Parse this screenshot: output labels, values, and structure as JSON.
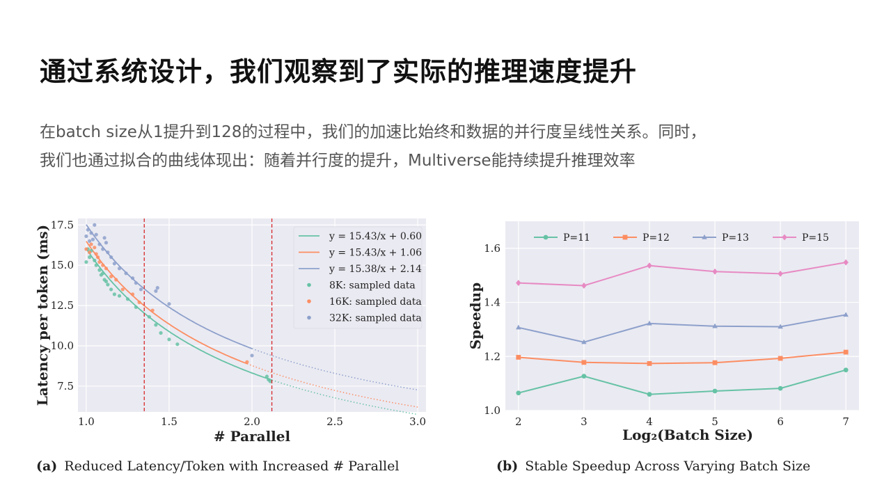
{
  "title": "通过系统设计，我们观察到了实际的推理速度提升",
  "subtitle": {
    "line1": "在batch size从1提升到128的过程中，我们的加速比始终和数据的并行度呈线性关系。同时，",
    "line2": "我们也通过拟合的曲线体现出：随着并行度的提升，Multiverse能持续提升推理效率"
  },
  "captions": {
    "a_tag": "(a)",
    "a_text": "Reduced Latency/Token with Increased # Parallel",
    "b_tag": "(b)",
    "b_text": "Stable Speedup Across Varying Batch Size"
  },
  "colors": {
    "green": "#66c2a5",
    "orange": "#fc8d62",
    "blue": "#8da0cb",
    "pink": "#e78ac3",
    "plot_bg": "#eaeaf2",
    "vline": "#d62728"
  },
  "chart_data": [
    {
      "type": "scatter",
      "xlabel": "# Parallel",
      "ylabel": "Latency per token (ms)",
      "xlim": [
        0.95,
        3.05
      ],
      "ylim": [
        5.9,
        17.9
      ],
      "xticks": [
        "1.0",
        "1.5",
        "2.0",
        "2.5",
        "3.0"
      ],
      "yticks": [
        "7.5",
        "10.0",
        "12.5",
        "15.0",
        "17.5"
      ],
      "grid": true,
      "legend_position": "top-right",
      "vlines": [
        1.35,
        2.12
      ],
      "fits": [
        {
          "name": "y = 15.43/x + 0.60",
          "a": 15.43,
          "b": 0.6,
          "color": "green",
          "solid_to": 2.12
        },
        {
          "name": "y = 15.43/x + 1.06",
          "a": 15.43,
          "b": 1.06,
          "color": "orange",
          "solid_to": 1.97
        },
        {
          "name": "y = 15.38/x + 2.14",
          "a": 15.38,
          "b": 2.14,
          "color": "blue",
          "solid_to": 2.0
        }
      ],
      "series": [
        {
          "name": "8K:  sampled data",
          "color": "green",
          "x": [
            1.0,
            1.01,
            1.02,
            1.03,
            1.05,
            1.06,
            1.08,
            1.09,
            1.1,
            1.11,
            1.12,
            1.13,
            1.15,
            1.17,
            1.2,
            1.25,
            1.3,
            1.38,
            1.42,
            1.45,
            1.5,
            1.55,
            2.09,
            2.1,
            2.11
          ],
          "y": [
            15.2,
            16.0,
            15.5,
            15.9,
            15.3,
            15.0,
            14.7,
            14.4,
            14.5,
            14.1,
            14.0,
            13.8,
            13.5,
            13.2,
            13.1,
            12.9,
            12.4,
            11.8,
            11.3,
            10.8,
            10.4,
            10.1,
            8.1,
            7.9,
            7.8
          ]
        },
        {
          "name": "16K: sampled data",
          "color": "orange",
          "x": [
            1.0,
            1.02,
            1.03,
            1.05,
            1.06,
            1.07,
            1.08,
            1.1,
            1.12,
            1.15,
            1.18,
            1.22,
            1.28,
            1.32,
            1.4,
            1.97
          ],
          "y": [
            16.0,
            15.8,
            16.3,
            16.1,
            15.7,
            15.5,
            15.2,
            15.0,
            14.8,
            14.3,
            14.1,
            13.5,
            13.2,
            12.7,
            12.2,
            9.0
          ]
        },
        {
          "name": "32K: sampled data",
          "color": "blue",
          "x": [
            1.0,
            1.01,
            1.02,
            1.03,
            1.04,
            1.05,
            1.06,
            1.08,
            1.1,
            1.11,
            1.12,
            1.13,
            1.15,
            1.17,
            1.2,
            1.24,
            1.28,
            1.3,
            1.33,
            1.42,
            1.43,
            1.5,
            2.0
          ],
          "y": [
            16.8,
            17.2,
            16.5,
            17.0,
            16.6,
            17.5,
            16.9,
            16.3,
            16.0,
            16.7,
            16.4,
            15.8,
            15.5,
            15.1,
            14.8,
            14.5,
            14.2,
            13.9,
            13.5,
            13.4,
            13.6,
            12.6,
            9.4
          ]
        }
      ]
    },
    {
      "type": "line",
      "xlabel": "Log₂(Batch Size)",
      "ylabel": "Speedup",
      "x": [
        2,
        3,
        4,
        5,
        6,
        7
      ],
      "xlim": [
        1.8,
        7.2
      ],
      "ylim": [
        1.0,
        1.7
      ],
      "yticks": [
        "1.0",
        "1.2",
        "1.4",
        "1.6"
      ],
      "grid": true,
      "legend_position": "top",
      "series": [
        {
          "name": "P=11",
          "color": "green",
          "marker": "circle",
          "values": [
            1.065,
            1.127,
            1.06,
            1.072,
            1.082,
            1.15
          ]
        },
        {
          "name": "P=12",
          "color": "orange",
          "marker": "square",
          "values": [
            1.197,
            1.178,
            1.174,
            1.177,
            1.193,
            1.216
          ]
        },
        {
          "name": "P=13",
          "color": "blue",
          "marker": "triangle",
          "values": [
            1.307,
            1.253,
            1.322,
            1.312,
            1.31,
            1.354
          ]
        },
        {
          "name": "P=15",
          "color": "pink",
          "marker": "diamond",
          "values": [
            1.472,
            1.462,
            1.536,
            1.514,
            1.506,
            1.548
          ]
        }
      ]
    }
  ]
}
